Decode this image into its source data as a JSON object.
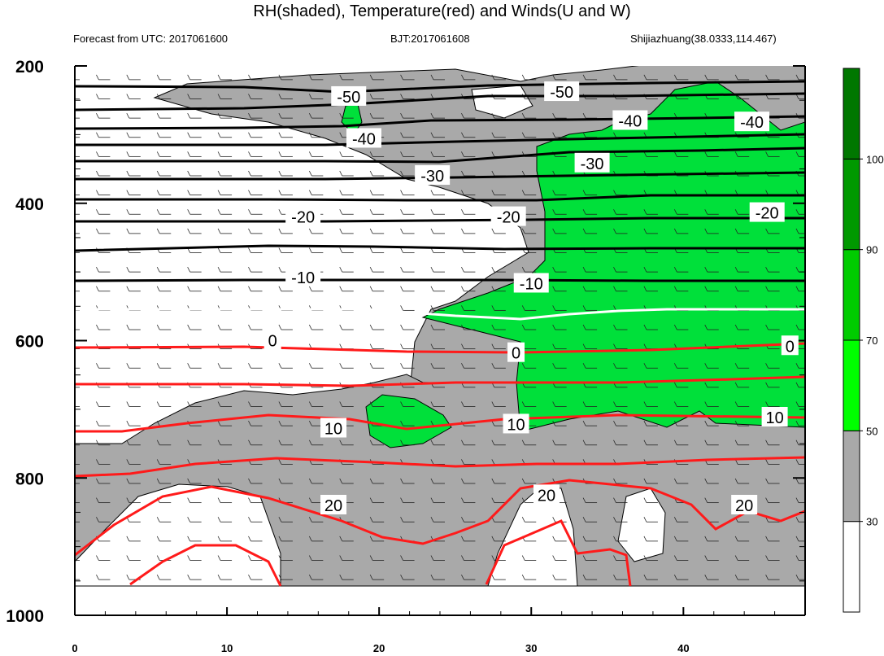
{
  "chart_data": {
    "type": "heatmap",
    "title": "RH(shaded), Temperature(red) and Winds(U and W)",
    "left_string": "Forecast from UTC: 2017061600",
    "center_string": "BJT:2017061608",
    "right_string": "Shijiazhuang(38.0333,114.467)",
    "x_range": [
      0,
      48
    ],
    "y_range": [
      1000,
      200
    ],
    "y_reversed": true,
    "x_ticks": [
      "0",
      "10",
      "20",
      "30",
      "40"
    ],
    "y_ticks": [
      "200",
      "400",
      "600",
      "800",
      "1000"
    ],
    "colorbar": {
      "labels": [
        "30",
        "50",
        "70",
        "90",
        "100"
      ],
      "colors": [
        "#ffffff",
        "#a9a9a9",
        "#00ff00",
        "#00cc00",
        "#009900",
        "#007700"
      ]
    },
    "temperature_levels": [
      "-50",
      "-40",
      "-30",
      "-20",
      "-10",
      "0",
      "10",
      "20"
    ],
    "contour_labels": [
      {
        "text": "-50",
        "x": 18,
        "y": 245
      },
      {
        "text": "-50",
        "x": 32,
        "y": 238
      },
      {
        "text": "-40",
        "x": 19,
        "y": 306
      },
      {
        "text": "-40",
        "x": 36.5,
        "y": 280
      },
      {
        "text": "-40",
        "x": 44.5,
        "y": 282
      },
      {
        "text": "-30",
        "x": 23.5,
        "y": 360
      },
      {
        "text": "-30",
        "x": 34,
        "y": 342
      },
      {
        "text": "-20",
        "x": 15,
        "y": 420
      },
      {
        "text": "-20",
        "x": 28.5,
        "y": 420
      },
      {
        "text": "-20",
        "x": 45.5,
        "y": 414
      },
      {
        "text": "-10",
        "x": 15,
        "y": 508
      },
      {
        "text": "-10",
        "x": 30,
        "y": 517
      },
      {
        "text": "0",
        "x": 13,
        "y": 600
      },
      {
        "text": "0",
        "x": 29,
        "y": 618
      },
      {
        "text": "0",
        "x": 47,
        "y": 608
      },
      {
        "text": "10",
        "x": 17,
        "y": 728
      },
      {
        "text": "10",
        "x": 29,
        "y": 722
      },
      {
        "text": "10",
        "x": 46,
        "y": 712
      },
      {
        "text": "20",
        "x": 17,
        "y": 840
      },
      {
        "text": "20",
        "x": 31,
        "y": 825
      },
      {
        "text": "20",
        "x": 44,
        "y": 840
      }
    ]
  }
}
